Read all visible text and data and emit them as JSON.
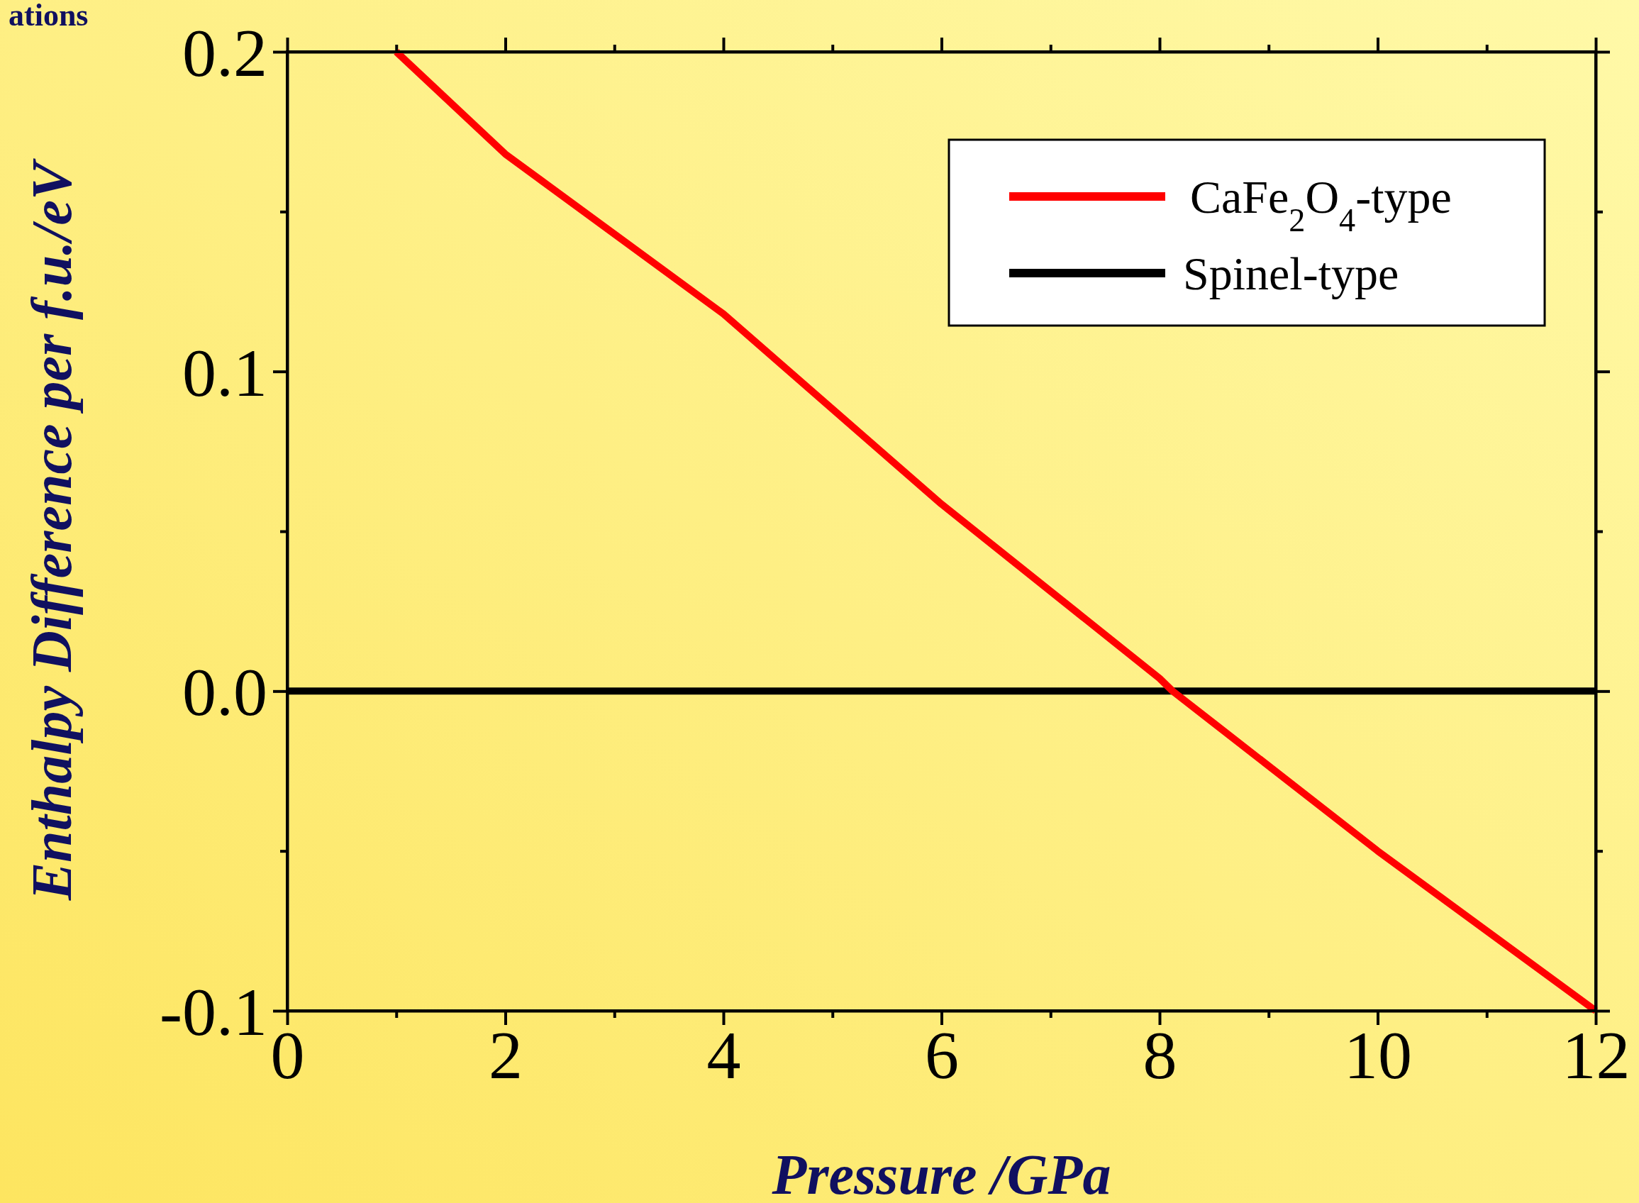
{
  "chart_data": {
    "type": "line",
    "xlabel": "Pressure /GPa",
    "ylabel": "Enthalpy Difference per f.u./eV",
    "annotations": [
      "ations"
    ],
    "series": [
      {
        "name": "CaFe$_{2}$O$_{4}$-type",
        "color": "#ff0000",
        "x": [
          1,
          2,
          4,
          6,
          8,
          8.12,
          10,
          12
        ],
        "values": [
          0.2,
          0.168,
          0.118,
          0.0585,
          0.004,
          0,
          -0.05,
          -0.1
        ]
      },
      {
        "name": "Spinel-type",
        "color": "#000000",
        "x": [
          0,
          12
        ],
        "values": [
          0,
          0
        ]
      }
    ],
    "xlim": [
      0,
      12
    ],
    "ylim": [
      -0.1,
      0.2
    ],
    "xticks": [
      0,
      {
        "value": 1,
        "label": null
      },
      2,
      {
        "value": 3,
        "label": null
      },
      4,
      {
        "value": 5,
        "label": null
      },
      6,
      {
        "value": 7,
        "label": null
      },
      8,
      {
        "value": 9,
        "label": null
      },
      10,
      {
        "value": 11,
        "label": null
      },
      12
    ],
    "yticks": [
      {
        "value": -0.1,
        "label": "-0.1"
      },
      {
        "value": -0.05,
        "label": null
      },
      {
        "value": 0,
        "label": "0.0"
      },
      {
        "value": 0.05,
        "label": null
      },
      0.1,
      {
        "value": 0.15,
        "label": null
      },
      0.2
    ],
    "grid": false,
    "legend": "top right",
    "marker": "none",
    "line_style": "solid"
  }
}
